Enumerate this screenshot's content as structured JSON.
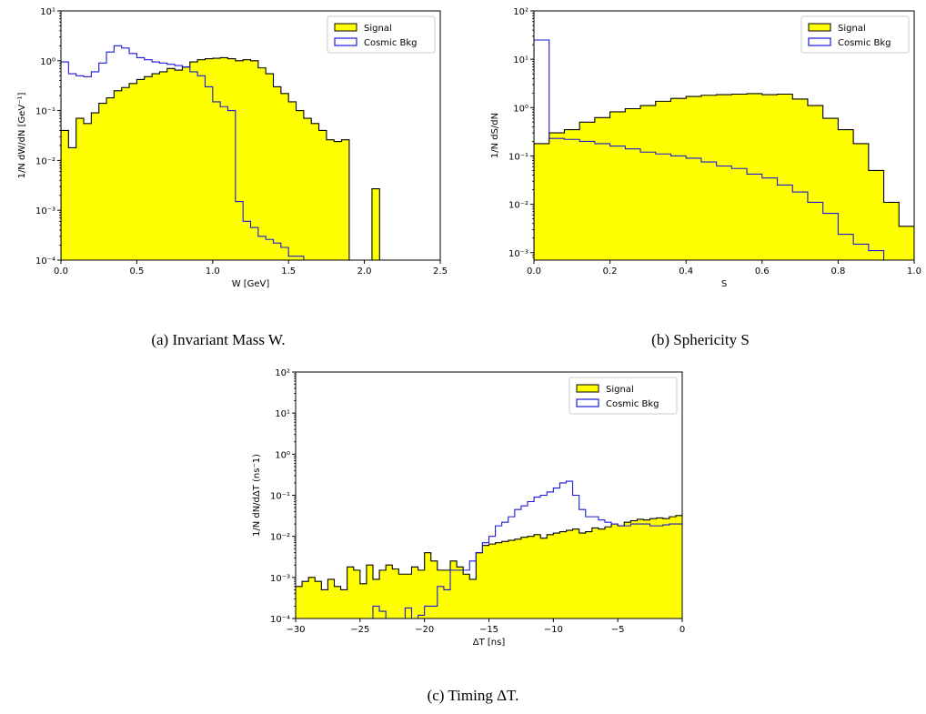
{
  "chart_data": [
    {
      "type": "histogram",
      "caption": "(a) Invariant Mass W.",
      "xlabel": "W [GeV]",
      "ylabel": "1/N dW/dN [GeV⁻¹]",
      "xlim": [
        0,
        2.5
      ],
      "ylim": [
        0.0001,
        10
      ],
      "yscale": "log",
      "legend": "top-right",
      "x_ticks": [
        "0.0",
        "0.5",
        "1.0",
        "1.5",
        "2.0",
        "2.5"
      ],
      "y_ticks": [
        "10⁻⁴",
        "10⁻³",
        "10⁻²",
        "10⁻¹",
        "10⁰",
        "10¹"
      ],
      "series": [
        {
          "name": "Signal",
          "style": "filled",
          "color": "#ffff00",
          "edge": "#000000",
          "x_start": 0.0,
          "bin_width": 0.05,
          "values": [
            0.04,
            0.018,
            0.07,
            0.055,
            0.09,
            0.14,
            0.18,
            0.25,
            0.29,
            0.35,
            0.42,
            0.48,
            0.55,
            0.6,
            0.7,
            0.65,
            0.75,
            0.95,
            1.05,
            1.1,
            1.12,
            1.15,
            1.1,
            1.0,
            1.05,
            1.0,
            0.72,
            0.55,
            0.3,
            0.22,
            0.15,
            0.1,
            0.07,
            0.055,
            0.04,
            0.026,
            0.024,
            0.026,
            0,
            0,
            0,
            0.0027,
            0,
            0,
            0,
            0,
            0,
            0,
            0,
            0
          ]
        },
        {
          "name": "Cosmic Bkg",
          "style": "step",
          "color": "#1a1ad8",
          "x_start": 0.0,
          "bin_width": 0.05,
          "values": [
            0.95,
            0.55,
            0.5,
            0.48,
            0.6,
            0.9,
            1.5,
            2.0,
            1.8,
            1.4,
            1.15,
            1.05,
            0.95,
            0.9,
            0.85,
            0.8,
            0.75,
            0.6,
            0.5,
            0.3,
            0.15,
            0.12,
            0.1,
            0.0015,
            0.0006,
            0.00045,
            0.0003,
            0.00026,
            0.00022,
            0.00018,
            0.00012,
            0.00012,
            0,
            0,
            0,
            0,
            0,
            0,
            0,
            0,
            0,
            0,
            0,
            0,
            0,
            0,
            0,
            0,
            0,
            0
          ]
        }
      ]
    },
    {
      "type": "histogram",
      "caption": "(b) Sphericity S",
      "xlabel": "S",
      "ylabel": "1/N dS/dN",
      "xlim": [
        0,
        1
      ],
      "ylim": [
        0.0007,
        100
      ],
      "yscale": "log",
      "legend": "top-right",
      "x_ticks": [
        "0.0",
        "0.2",
        "0.4",
        "0.6",
        "0.8",
        "1.0"
      ],
      "y_ticks": [
        "10⁻³",
        "10⁻²",
        "10⁻¹",
        "10⁰",
        "10¹",
        "10²"
      ],
      "series": [
        {
          "name": "Signal",
          "style": "filled",
          "color": "#ffff00",
          "edge": "#000000",
          "x_start": 0.0,
          "bin_width": 0.04,
          "values": [
            0.18,
            0.3,
            0.35,
            0.5,
            0.62,
            0.82,
            0.95,
            1.1,
            1.35,
            1.55,
            1.7,
            1.8,
            1.85,
            1.9,
            1.95,
            1.85,
            1.9,
            1.5,
            1.1,
            0.6,
            0.35,
            0.18,
            0.05,
            0.011,
            0.0035
          ]
        },
        {
          "name": "Cosmic Bkg",
          "style": "step",
          "color": "#1a1ad8",
          "x_start": 0.0,
          "bin_width": 0.04,
          "values": [
            25,
            0.23,
            0.22,
            0.2,
            0.18,
            0.16,
            0.14,
            0.12,
            0.11,
            0.1,
            0.09,
            0.075,
            0.062,
            0.055,
            0.042,
            0.035,
            0.025,
            0.018,
            0.011,
            0.0065,
            0.0024,
            0.0015,
            0.0011,
            0,
            0
          ]
        }
      ]
    },
    {
      "type": "histogram",
      "caption": "(c) Timing ΔT.",
      "xlabel": "ΔT [ns]",
      "ylabel": "1/N dN/dΔT (ns⁻1)",
      "xlim": [
        -30,
        0
      ],
      "ylim": [
        0.0001,
        100
      ],
      "yscale": "log",
      "legend": "top-right",
      "x_ticks": [
        "−30",
        "−25",
        "−20",
        "−15",
        "−10",
        "−5",
        "0"
      ],
      "y_ticks": [
        "10⁻⁴",
        "10⁻³",
        "10⁻²",
        "10⁻¹",
        "10⁰",
        "10¹",
        "10²"
      ],
      "series": [
        {
          "name": "Signal",
          "style": "filled",
          "color": "#ffff00",
          "edge": "#000000",
          "x_start": -30.0,
          "bin_width": 0.5,
          "values": [
            0.0006,
            0.0008,
            0.001,
            0.0008,
            0.0005,
            0.0009,
            0.0006,
            0.0005,
            0.0018,
            0.0015,
            0.0007,
            0.002,
            0.0009,
            0.0015,
            0.002,
            0.0016,
            0.0012,
            0.0012,
            0.0018,
            0.0015,
            0.004,
            0.0025,
            0.0015,
            0.0015,
            0.0025,
            0.0018,
            0.0012,
            0.0009,
            0.004,
            0.006,
            0.0065,
            0.007,
            0.0075,
            0.008,
            0.0085,
            0.0095,
            0.01,
            0.011,
            0.009,
            0.011,
            0.012,
            0.013,
            0.014,
            0.015,
            0.012,
            0.013,
            0.016,
            0.015,
            0.017,
            0.02,
            0.018,
            0.022,
            0.024,
            0.026,
            0.025,
            0.027,
            0.028,
            0.027,
            0.03,
            0.032,
            0.035,
            0.04,
            0.048,
            0.055,
            0.065,
            0.08,
            0.095,
            0.11,
            0.13,
            0.15,
            0.16,
            0.15,
            0.13,
            0.1,
            0.08,
            0.11,
            0.07,
            0.05,
            0.04,
            0.03
          ]
        },
        {
          "name": "Cosmic Bkg",
          "style": "step",
          "color": "#1a1ad8",
          "x_start": -30.0,
          "bin_width": 0.5,
          "values": [
            0,
            0,
            0,
            0,
            0,
            0,
            0.0001,
            0,
            0,
            0,
            0.0001,
            0.0001,
            0.0002,
            0.00015,
            0.0001,
            0.0001,
            0.0001,
            0.00018,
            0.0001,
            0.00012,
            0.0002,
            0.0002,
            0.0006,
            0.0005,
            0.0015,
            0.0015,
            0.0015,
            0.0025,
            0.004,
            0.007,
            0.01,
            0.018,
            0.022,
            0.03,
            0.045,
            0.055,
            0.07,
            0.09,
            0.1,
            0.12,
            0.15,
            0.2,
            0.22,
            0.1,
            0.045,
            0.03,
            0.03,
            0.025,
            0.022,
            0.02,
            0.018,
            0.018,
            0.02,
            0.02,
            0.02,
            0.018,
            0.018,
            0.019,
            0.02,
            0.02,
            0.022,
            0.022,
            0.023,
            0.024,
            0.025,
            0.026,
            0.028,
            0.03,
            0.03,
            0.032,
            0.034,
            0.035,
            0.035,
            0.04,
            0.04,
            0.05,
            0.12,
            0.07,
            0.09,
            0.085
          ]
        }
      ]
    }
  ]
}
